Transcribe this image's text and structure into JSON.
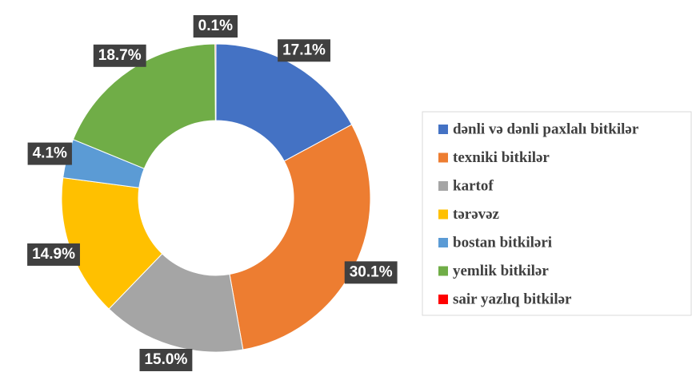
{
  "chart_data": {
    "type": "donut",
    "categories": [
      "dənli və dənli paxlalı bitkilər",
      "texniki bitkilər",
      "kartof",
      "tərəvəz",
      "bostan bitkiləri",
      "yemlik bitkilər",
      "sair yazlıq bitkilər"
    ],
    "values": [
      17.1,
      30.1,
      15.0,
      14.9,
      4.1,
      18.7,
      0.1
    ],
    "value_labels": [
      "17.1%",
      "30.1%",
      "15.0%",
      "14.9%",
      "4.1%",
      "18.7%",
      "0.1%"
    ],
    "colors": [
      "#4472c4",
      "#ed7d31",
      "#a5a5a5",
      "#ffc000",
      "#5b9bd5",
      "#70ad47",
      "#ff0000"
    ]
  }
}
